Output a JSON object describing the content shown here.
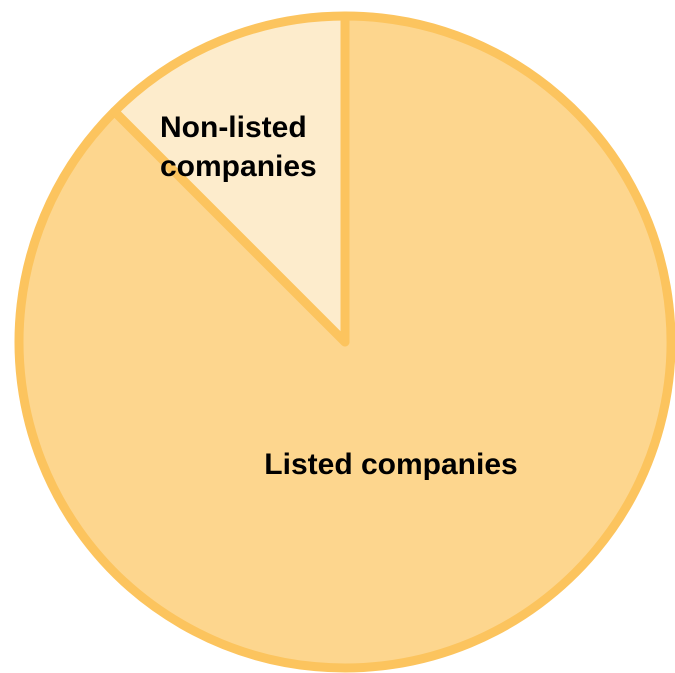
{
  "chart_data": {
    "type": "pie",
    "slices": [
      {
        "label": "Listed companies",
        "value": 87.5,
        "color": "#fdd68e"
      },
      {
        "label": "Non-listed companies",
        "value": 12.5,
        "color": "#fdeccc"
      }
    ],
    "border_color": "#fcc45e",
    "start_angle": "12 o'clock",
    "direction": "clockwise",
    "legend": "none"
  }
}
